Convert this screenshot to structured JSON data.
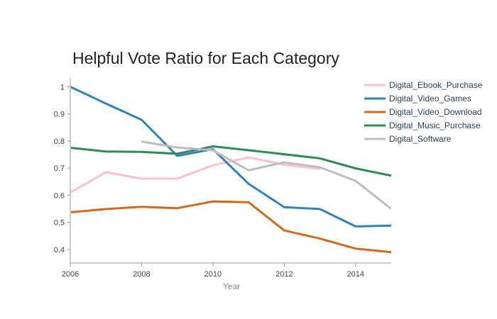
{
  "chart_data": {
    "type": "line",
    "title": "Helpful Vote Ratio for Each Category",
    "xlabel": "Year",
    "ylabel": "",
    "xlim": [
      2006,
      2015
    ],
    "ylim": [
      0.35,
      1.035
    ],
    "x_ticks": [
      2006,
      2008,
      2010,
      2012,
      2014
    ],
    "y_ticks": [
      0.4,
      0.5,
      0.6,
      0.7,
      0.8,
      0.9,
      1
    ],
    "grid": false,
    "legend_position": "top-right",
    "series": [
      {
        "name": "Digital_Ebook_Purchase",
        "color": "#ffc0cb",
        "x": [
          2006,
          2007,
          2008,
          2009,
          2010,
          2011,
          2012,
          2013
        ],
        "y": [
          0.61,
          0.685,
          0.661,
          0.661,
          0.71,
          0.74,
          0.712,
          0.697
        ]
      },
      {
        "name": "Digital_Video_Games",
        "color": "#3182bd",
        "x": [
          2006,
          2007,
          2008,
          2009,
          2010,
          2011,
          2012,
          2013,
          2014,
          2015
        ],
        "y": [
          1.0,
          0.938,
          0.878,
          0.745,
          0.77,
          0.642,
          0.556,
          0.549,
          0.485,
          0.488
        ]
      },
      {
        "name": "Digital_Video_Download",
        "color": "#d2691e",
        "x": [
          2006,
          2007,
          2008,
          2009,
          2010,
          2011,
          2012,
          2013,
          2014,
          2015
        ],
        "y": [
          0.537,
          0.549,
          0.557,
          0.552,
          0.577,
          0.574,
          0.47,
          0.44,
          0.403,
          0.39
        ]
      },
      {
        "name": "Digital_Music_Purchase",
        "color": "#2e8b57",
        "x": [
          2006,
          2007,
          2008,
          2009,
          2010,
          2011,
          2012,
          2013,
          2014,
          2015
        ],
        "y": [
          0.775,
          0.761,
          0.76,
          0.753,
          0.78,
          0.766,
          0.751,
          0.736,
          0.699,
          0.672
        ]
      },
      {
        "name": "Digital_Software",
        "color": "#bdbdbd",
        "x": [
          2008,
          2009,
          2010,
          2011,
          2012,
          2013,
          2014,
          2015
        ],
        "y": [
          0.798,
          0.776,
          0.766,
          0.692,
          0.721,
          0.703,
          0.653,
          0.55
        ]
      }
    ]
  }
}
